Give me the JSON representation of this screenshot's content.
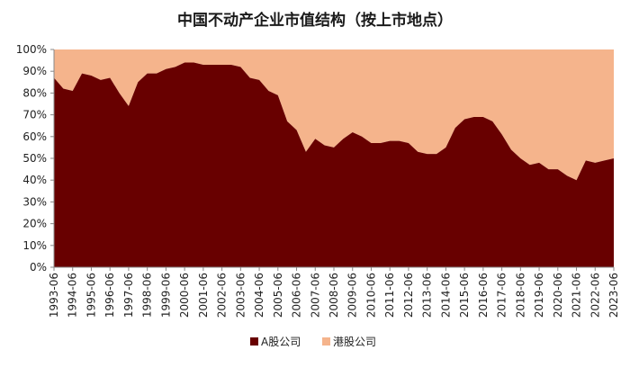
{
  "chart_data": {
    "type": "area",
    "stacked": true,
    "percent": true,
    "title": "中国不动产企业市值结构（按上市地点）",
    "xlabel": "",
    "ylabel": "",
    "ylim": [
      0,
      100
    ],
    "yticks": [
      "0%",
      "10%",
      "20%",
      "30%",
      "40%",
      "50%",
      "60%",
      "70%",
      "80%",
      "90%",
      "100%"
    ],
    "x_tick_labels": [
      "1993-06",
      "1994-06",
      "1995-06",
      "1996-06",
      "1997-06",
      "1998-06",
      "1999-06",
      "2000-06",
      "2001-06",
      "2002-06",
      "2003-06",
      "2004-06",
      "2005-06",
      "2006-06",
      "2007-06",
      "2008-06",
      "2009-06",
      "2010-06",
      "2011-06",
      "2012-06",
      "2013-06",
      "2014-06",
      "2015-06",
      "2016-06",
      "2017-06",
      "2018-06",
      "2019-06",
      "2020-06",
      "2021-06",
      "2022-06",
      "2023-06"
    ],
    "x": [
      "1993-06",
      "1993-12",
      "1994-06",
      "1994-12",
      "1995-06",
      "1995-12",
      "1996-06",
      "1996-12",
      "1997-06",
      "1997-12",
      "1998-06",
      "1998-12",
      "1999-06",
      "1999-12",
      "2000-06",
      "2000-12",
      "2001-06",
      "2001-12",
      "2002-06",
      "2002-12",
      "2003-06",
      "2003-12",
      "2004-06",
      "2004-12",
      "2005-06",
      "2005-12",
      "2006-06",
      "2006-12",
      "2007-06",
      "2007-12",
      "2008-06",
      "2008-12",
      "2009-06",
      "2009-12",
      "2010-06",
      "2010-12",
      "2011-06",
      "2011-12",
      "2012-06",
      "2012-12",
      "2013-06",
      "2013-12",
      "2014-06",
      "2014-12",
      "2015-06",
      "2015-12",
      "2016-06",
      "2016-12",
      "2017-06",
      "2017-12",
      "2018-06",
      "2018-12",
      "2019-06",
      "2019-12",
      "2020-06",
      "2020-12",
      "2021-06",
      "2021-12",
      "2022-06",
      "2022-12",
      "2023-06"
    ],
    "legend_position": "bottom",
    "series": [
      {
        "name": "A股公司",
        "color": "#680000",
        "values": [
          87,
          82,
          81,
          89,
          88,
          86,
          87,
          80,
          74,
          85,
          89,
          89,
          91,
          92,
          94,
          94,
          93,
          93,
          93,
          93,
          92,
          87,
          86,
          81,
          79,
          67,
          63,
          53,
          59,
          56,
          55,
          59,
          62,
          60,
          57,
          57,
          58,
          58,
          57,
          53,
          52,
          52,
          55,
          64,
          68,
          69,
          69,
          67,
          61,
          54,
          50,
          47,
          48,
          45,
          45,
          42,
          40,
          49,
          48,
          49,
          50
        ]
      },
      {
        "name": "港股公司",
        "color": "#f5b48c",
        "values": [
          13,
          18,
          19,
          11,
          12,
          14,
          13,
          20,
          26,
          15,
          11,
          11,
          9,
          8,
          6,
          6,
          7,
          7,
          7,
          7,
          8,
          13,
          14,
          19,
          21,
          33,
          37,
          47,
          41,
          44,
          45,
          41,
          38,
          40,
          43,
          43,
          42,
          42,
          43,
          47,
          48,
          48,
          45,
          36,
          32,
          31,
          31,
          33,
          39,
          46,
          50,
          53,
          52,
          55,
          55,
          58,
          60,
          51,
          52,
          51,
          50
        ]
      }
    ]
  }
}
